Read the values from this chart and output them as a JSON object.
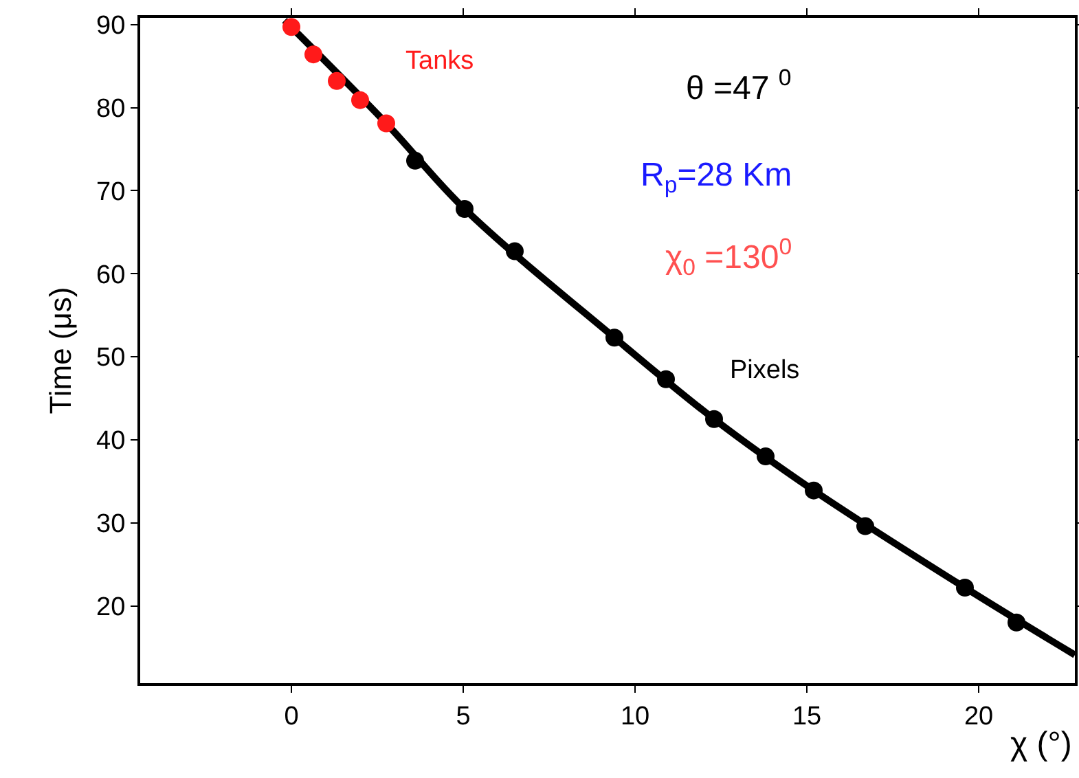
{
  "chart_data": {
    "type": "scatter",
    "xlabel": "χ (°)",
    "ylabel": "Time (μs)",
    "xlim": [
      -4.4,
      22.8
    ],
    "ylim": [
      10.7,
      90.8
    ],
    "xticks": [
      0,
      5,
      10,
      15,
      20
    ],
    "yticks": [
      20,
      30,
      40,
      50,
      60,
      70,
      80,
      90
    ],
    "grid": false,
    "legend": false,
    "marker": "circle",
    "series": [
      {
        "type": "line",
        "marker": "none",
        "color": "#000000",
        "x": [
          -0.2,
          2.76,
          5.04,
          9.4,
          12.3,
          15.2,
          19.6,
          22.8
        ],
        "values": [
          90.5,
          78.1,
          67.8,
          52.3,
          42.5,
          33.9,
          22.2,
          14.1
        ]
      },
      {
        "name": "Tanks",
        "color": "#ff1a1a",
        "x": [
          0,
          0.64,
          1.32,
          2.0,
          2.76
        ],
        "values": [
          89.7,
          86.4,
          83.2,
          80.9,
          78.1
        ]
      },
      {
        "name": "Pixels",
        "color": "#000000",
        "x": [
          3.6,
          5.04,
          6.5,
          9.4,
          10.9,
          12.3,
          13.8,
          15.2,
          16.7,
          19.6,
          21.1
        ],
        "values": [
          73.6,
          67.8,
          62.7,
          52.3,
          47.3,
          42.5,
          38.0,
          33.9,
          29.6,
          22.2,
          18.0
        ]
      }
    ],
    "annotations": [
      "θ =47 $^{0}$",
      "R$_{p}$=28 Km",
      "χ$_{0}$ =130$^{0}$"
    ]
  }
}
